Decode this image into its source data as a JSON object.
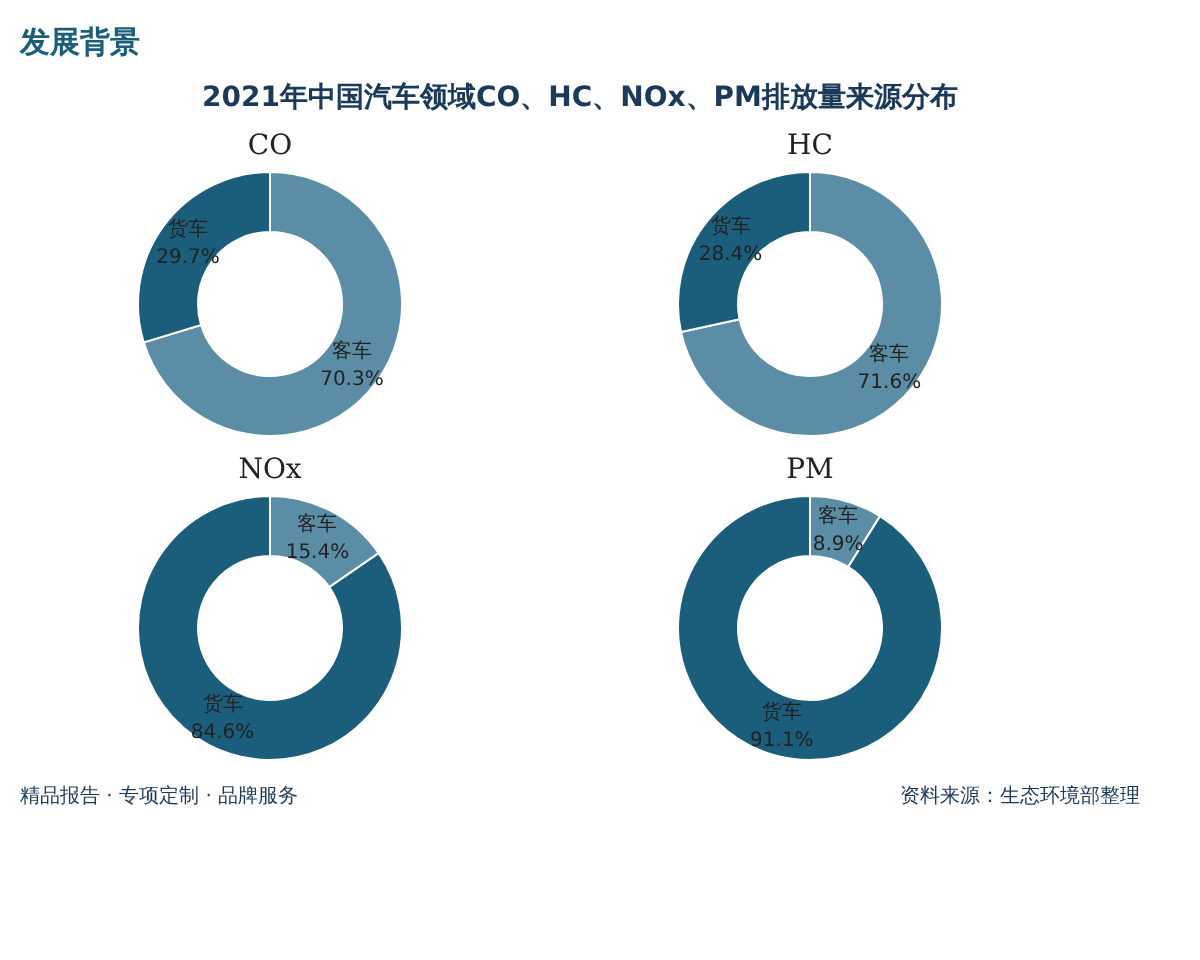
{
  "chart_data": [
    {
      "type": "donut",
      "title": "CO",
      "categories": [
        "客车",
        "货车"
      ],
      "values": [
        70.3,
        29.7
      ],
      "value_labels": [
        "70.3%",
        "29.7%"
      ],
      "colors": [
        "#5b8ea6",
        "#1b5e7b"
      ],
      "legend": false,
      "annotations": [
        "发展背景",
        "2021年中国汽车领域CO、HC、NOx、PM排放量来源分布",
        "精品报告 · 专项定制 · 品牌服务",
        "资料来源：生态环境部整理"
      ]
    },
    {
      "type": "donut",
      "title": "HC",
      "categories": [
        "客车",
        "货车"
      ],
      "values": [
        71.6,
        28.4
      ],
      "value_labels": [
        "71.6%",
        "28.4%"
      ],
      "colors": [
        "#5b8ea6",
        "#1b5e7b"
      ],
      "legend": false
    },
    {
      "type": "donut",
      "title": "NOx",
      "categories": [
        "客车",
        "货车"
      ],
      "values": [
        15.4,
        84.6
      ],
      "value_labels": [
        "15.4%",
        "84.6%"
      ],
      "colors": [
        "#5b8ea6",
        "#1b5e7b"
      ],
      "legend": false
    },
    {
      "type": "donut",
      "title": "PM",
      "categories": [
        "客车",
        "货车"
      ],
      "values": [
        8.9,
        91.1
      ],
      "value_labels": [
        "8.9%",
        "91.1%"
      ],
      "colors": [
        "#5b8ea6",
        "#1b5e7b"
      ],
      "legend": false
    }
  ]
}
